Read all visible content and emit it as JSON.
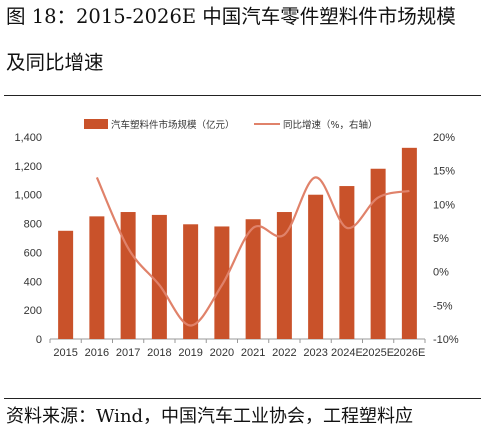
{
  "figure": {
    "title_line1": "图 18：2015-2026E 中国汽车零件塑料件市场规模",
    "title_line2": "及同比增速",
    "source": "资料来源：Wind，中国汽车工业协会，工程塑料应"
  },
  "colors": {
    "bar": "#c9522a",
    "line": "#e0826a",
    "axis": "#999999"
  },
  "chart_data": {
    "type": "bar",
    "categories": [
      "2015",
      "2016",
      "2017",
      "2018",
      "2019",
      "2020",
      "2021",
      "2022",
      "2023",
      "2024E",
      "2025E",
      "2026E"
    ],
    "series": [
      {
        "name": "汽车塑料件市场规模（亿元）",
        "type": "bar",
        "axis": "left",
        "values": [
          750,
          850,
          880,
          860,
          795,
          780,
          830,
          880,
          1000,
          1060,
          1180,
          1325
        ]
      },
      {
        "name": "同比增速（%，右轴）",
        "type": "line",
        "axis": "right",
        "values": [
          null,
          14,
          3.5,
          -2,
          -8,
          -2,
          6.5,
          5.5,
          14,
          6.5,
          11,
          12
        ]
      }
    ],
    "left_axis": {
      "ylim": [
        0,
        1400
      ],
      "ticks": [
        "0",
        "200",
        "400",
        "600",
        "800",
        "1,000",
        "1,200",
        "1,400"
      ]
    },
    "right_axis": {
      "ylim": [
        -10,
        20
      ],
      "ticks": [
        "-10%",
        "-5%",
        "0%",
        "5%",
        "10%",
        "15%",
        "20%"
      ]
    },
    "legend": {
      "placement": "top"
    }
  }
}
